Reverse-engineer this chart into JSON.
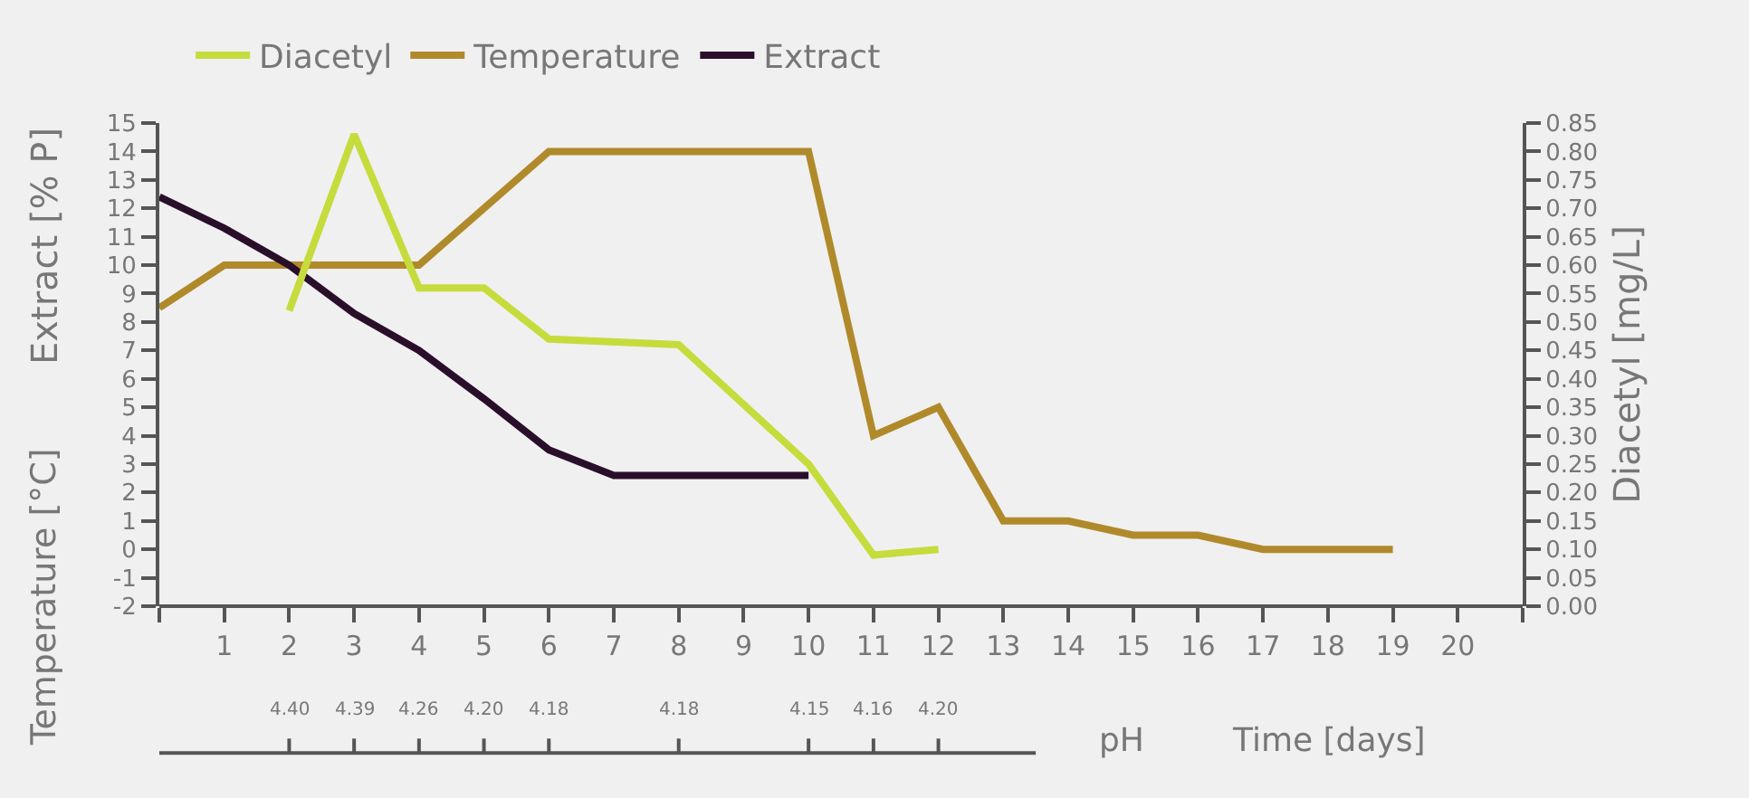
{
  "chart_data": {
    "type": "line",
    "xlabel": "Time [days]",
    "ylabel": "Extract [% P]",
    "y2label": "Diacetyl [mg/L]",
    "annotations": [
      "Temperature [°C]",
      "pH",
      {
        "text": "4.40",
        "x": 2
      },
      {
        "text": "4.39",
        "x": 3
      },
      {
        "text": "4.26",
        "x": 4
      },
      {
        "text": "4.20",
        "x": 5
      },
      {
        "text": "4.18",
        "x": 6
      },
      {
        "text": "4.18",
        "x": 8
      },
      {
        "text": "4.15",
        "x": 10
      },
      {
        "text": "4.16",
        "x": 11
      },
      {
        "text": "4.20",
        "x": 12
      }
    ],
    "xlim": [
      0,
      21
    ],
    "xticks": [
      {
        "value": 0,
        "label": null
      },
      1,
      2,
      3,
      4,
      5,
      6,
      7,
      8,
      9,
      10,
      11,
      12,
      13,
      14,
      15,
      16,
      17,
      18,
      19,
      20,
      {
        "value": 21,
        "label": null
      }
    ],
    "ylim": [
      -2,
      15
    ],
    "yticks": [
      -2,
      -1,
      0,
      1,
      2,
      3,
      4,
      5,
      6,
      7,
      8,
      9,
      10,
      11,
      12,
      13,
      14,
      15
    ],
    "y2lim": [
      0,
      0.85
    ],
    "y2ticks": [
      {
        "value": 0,
        "label": "0.00"
      },
      {
        "value": 0.05,
        "label": "0.05"
      },
      {
        "value": 0.1,
        "label": "0.10"
      },
      {
        "value": 0.15,
        "label": "0.15"
      },
      {
        "value": 0.2,
        "label": "0.20"
      },
      {
        "value": 0.25,
        "label": "0.25"
      },
      {
        "value": 0.3,
        "label": "0.30"
      },
      {
        "value": 0.35,
        "label": "0.35"
      },
      {
        "value": 0.4,
        "label": "0.40"
      },
      {
        "value": 0.45,
        "label": "0.45"
      },
      {
        "value": 0.5,
        "label": "0.50"
      },
      {
        "value": 0.55,
        "label": "0.55"
      },
      {
        "value": 0.6,
        "label": "0.60"
      },
      {
        "value": 0.65,
        "label": "0.65"
      },
      {
        "value": 0.7,
        "label": "0.70"
      },
      {
        "value": 0.75,
        "label": "0.75"
      },
      {
        "value": 0.8,
        "label": "0.80"
      },
      {
        "value": 0.85,
        "label": "0.85"
      }
    ],
    "grid": false,
    "legend": "top left",
    "marker": "none",
    "line_style": "solid",
    "series": [
      {
        "name": "Diacetyl",
        "color": "#c5dc3c",
        "axis": "y2",
        "x": [
          2,
          3,
          4,
          5,
          6,
          8,
          10,
          11,
          12
        ],
        "values": [
          0.52,
          0.83,
          0.56,
          0.56,
          0.47,
          0.46,
          0.25,
          0.09,
          0.1
        ]
      },
      {
        "name": "Temperature",
        "color": "#b08a2a",
        "x": [
          0,
          1,
          2,
          3,
          4,
          5,
          6,
          7,
          8,
          9,
          10,
          11,
          12,
          13,
          14,
          15,
          16,
          17,
          18,
          19
        ],
        "values": [
          8.5,
          10,
          10,
          10,
          10,
          12,
          14,
          14,
          14,
          14,
          14,
          4,
          5,
          1,
          1,
          0.5,
          0.5,
          0,
          0,
          0
        ]
      },
      {
        "name": "Extract",
        "color": "#2a0f2a",
        "x": [
          0,
          1,
          2,
          3,
          4,
          5,
          6,
          7,
          8,
          9,
          10
        ],
        "values": [
          12.4,
          11.3,
          10,
          8.3,
          7,
          5.3,
          3.5,
          2.6,
          2.6,
          2.6,
          2.6
        ]
      }
    ]
  }
}
